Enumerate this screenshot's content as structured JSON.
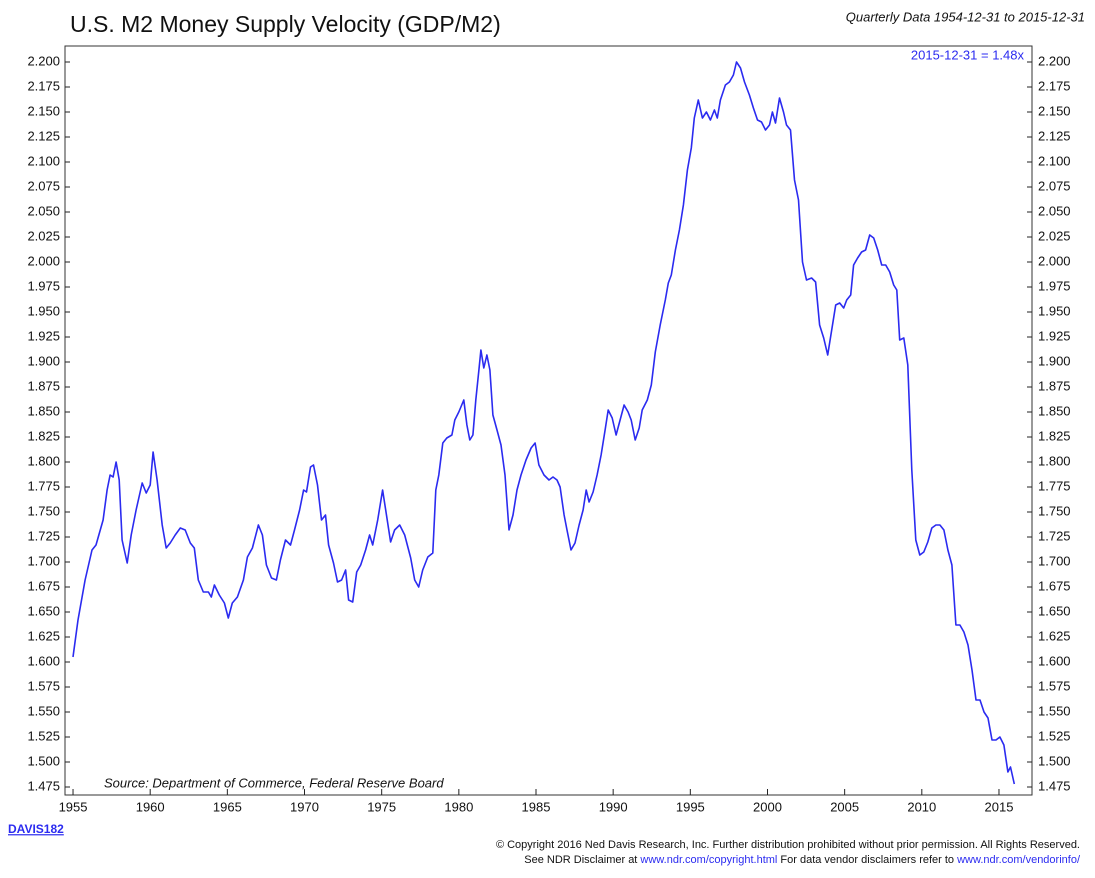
{
  "chart_data": {
    "type": "line",
    "title": "U.S. M2 Money Supply Velocity (GDP/M2)",
    "subtitle": "Quarterly Data 1954-12-31 to 2015-12-31",
    "annotation": "2015-12-31 = 1.48x",
    "source": "Source:   Department of Commerce, Federal Reserve Board",
    "chart_id": "DAVIS182",
    "copyright": [
      "© Copyright 2016 Ned Davis Research, Inc. Further distribution prohibited without prior permission. All Rights Reserved.",
      "See NDR Disclaimer at ",
      "www.ndr.com/copyright.html",
      "   For data vendor disclaimers refer to ",
      "www.ndr.com/vendorinfo/"
    ],
    "color": "#2b2bf0",
    "xlim": [
      1954.48,
      2017.14
    ],
    "xticks": [
      1955,
      1960,
      1965,
      1970,
      1975,
      1980,
      1985,
      1990,
      1995,
      2000,
      2005,
      2010,
      2015
    ],
    "ylim": [
      1.469,
      2.212
    ],
    "yticks": [
      {
        "value": 1.475,
        "label": "1.475"
      },
      {
        "value": 1.5,
        "label": "1.500"
      },
      {
        "value": 1.525,
        "label": "1.525"
      },
      {
        "value": 1.55,
        "label": "1.550"
      },
      {
        "value": 1.575,
        "label": "1.575"
      },
      {
        "value": 1.6,
        "label": "1.600"
      },
      {
        "value": 1.625,
        "label": "1.625"
      },
      {
        "value": 1.65,
        "label": "1.650"
      },
      {
        "value": 1.675,
        "label": "1.675"
      },
      {
        "value": 1.7,
        "label": "1.700"
      },
      {
        "value": 1.725,
        "label": "1.725"
      },
      {
        "value": 1.75,
        "label": "1.750"
      },
      {
        "value": 1.775,
        "label": "1.775"
      },
      {
        "value": 1.8,
        "label": "1.800"
      },
      {
        "value": 1.825,
        "label": "1.825"
      },
      {
        "value": 1.85,
        "label": "1.850"
      },
      {
        "value": 1.875,
        "label": "1.875"
      },
      {
        "value": 1.9,
        "label": "1.900"
      },
      {
        "value": 1.925,
        "label": "1.925"
      },
      {
        "value": 1.95,
        "label": "1.950"
      },
      {
        "value": 1.975,
        "label": "1.975"
      },
      {
        "value": 2.0,
        "label": "2.000"
      },
      {
        "value": 2.025,
        "label": "2.025"
      },
      {
        "value": 2.05,
        "label": "2.050"
      },
      {
        "value": 2.075,
        "label": "2.075"
      },
      {
        "value": 2.1,
        "label": "2.100"
      },
      {
        "value": 2.125,
        "label": "2.125"
      },
      {
        "value": 2.15,
        "label": "2.150"
      },
      {
        "value": 2.175,
        "label": "2.175"
      },
      {
        "value": 2.2,
        "label": "2.200"
      }
    ],
    "x": [
      1955.0,
      1955.32,
      1955.78,
      1956.23,
      1956.49,
      1956.95,
      1957.21,
      1957.4,
      1957.6,
      1957.79,
      1957.99,
      1958.18,
      1958.51,
      1958.77,
      1959.09,
      1959.48,
      1959.74,
      1960.0,
      1960.19,
      1960.45,
      1960.78,
      1961.04,
      1961.3,
      1961.62,
      1961.95,
      1962.27,
      1962.6,
      1962.86,
      1963.12,
      1963.44,
      1963.77,
      1963.96,
      1964.16,
      1964.48,
      1964.81,
      1965.06,
      1965.32,
      1965.65,
      1966.04,
      1966.3,
      1966.62,
      1967.01,
      1967.27,
      1967.53,
      1967.86,
      1968.18,
      1968.44,
      1968.77,
      1969.09,
      1969.35,
      1969.68,
      1969.94,
      1970.13,
      1970.39,
      1970.58,
      1970.84,
      1971.1,
      1971.36,
      1971.56,
      1971.88,
      1972.14,
      1972.4,
      1972.66,
      1972.86,
      1973.12,
      1973.38,
      1973.64,
      1973.96,
      1974.22,
      1974.42,
      1974.74,
      1975.06,
      1975.26,
      1975.58,
      1975.84,
      1976.17,
      1976.49,
      1976.88,
      1977.14,
      1977.4,
      1977.66,
      1977.99,
      1978.31,
      1978.51,
      1978.7,
      1978.96,
      1979.22,
      1979.55,
      1979.74,
      1980.0,
      1980.32,
      1980.52,
      1980.71,
      1980.91,
      1981.1,
      1981.3,
      1981.43,
      1981.62,
      1981.82,
      1982.01,
      1982.21,
      1982.47,
      1982.73,
      1982.99,
      1983.25,
      1983.51,
      1983.77,
      1984.03,
      1984.35,
      1984.68,
      1984.94,
      1985.19,
      1985.52,
      1985.84,
      1986.1,
      1986.36,
      1986.56,
      1986.82,
      1987.01,
      1987.27,
      1987.53,
      1987.79,
      1988.05,
      1988.25,
      1988.44,
      1988.7,
      1988.96,
      1989.22,
      1989.48,
      1989.68,
      1989.94,
      1990.19,
      1990.45,
      1990.71,
      1990.97,
      1991.17,
      1991.43,
      1991.69,
      1991.88,
      1992.21,
      1992.47,
      1992.73,
      1993.05,
      1993.38,
      1993.57,
      1993.77,
      1994.03,
      1994.29,
      1994.55,
      1994.81,
      1995.06,
      1995.26,
      1995.52,
      1995.78,
      1996.04,
      1996.3,
      1996.56,
      1996.75,
      1996.95,
      1997.27,
      1997.53,
      1997.79,
      1997.99,
      1998.25,
      1998.51,
      1998.83,
      1999.09,
      1999.35,
      1999.61,
      1999.87,
      2000.13,
      2000.32,
      2000.52,
      2000.78,
      2001.04,
      2001.23,
      2001.49,
      2001.75,
      2002.01,
      2002.27,
      2002.53,
      2002.86,
      2003.12,
      2003.38,
      2003.64,
      2003.9,
      2004.16,
      2004.42,
      2004.68,
      2004.94,
      2005.13,
      2005.39,
      2005.58,
      2005.84,
      2006.1,
      2006.36,
      2006.62,
      2006.88,
      2007.14,
      2007.4,
      2007.66,
      2007.92,
      2008.18,
      2008.38,
      2008.57,
      2008.83,
      2009.09,
      2009.35,
      2009.61,
      2009.87,
      2010.13,
      2010.39,
      2010.65,
      2010.91,
      2011.17,
      2011.43,
      2011.69,
      2011.95,
      2012.21,
      2012.47,
      2012.73,
      2012.99,
      2013.25,
      2013.51,
      2013.77,
      2014.03,
      2014.29,
      2014.55,
      2014.81,
      2015.06,
      2015.32,
      2015.58,
      2015.75,
      2015.99
    ],
    "values": [
      1.605,
      1.642,
      1.682,
      1.712,
      1.717,
      1.742,
      1.772,
      1.787,
      1.785,
      1.8,
      1.782,
      1.722,
      1.699,
      1.727,
      1.752,
      1.779,
      1.769,
      1.777,
      1.81,
      1.782,
      1.737,
      1.714,
      1.719,
      1.727,
      1.734,
      1.732,
      1.719,
      1.714,
      1.682,
      1.67,
      1.67,
      1.665,
      1.677,
      1.667,
      1.659,
      1.644,
      1.659,
      1.665,
      1.682,
      1.705,
      1.714,
      1.737,
      1.727,
      1.697,
      1.684,
      1.682,
      1.702,
      1.722,
      1.717,
      1.732,
      1.752,
      1.772,
      1.77,
      1.795,
      1.797,
      1.777,
      1.742,
      1.747,
      1.717,
      1.699,
      1.68,
      1.682,
      1.692,
      1.662,
      1.66,
      1.69,
      1.697,
      1.712,
      1.727,
      1.717,
      1.742,
      1.772,
      1.752,
      1.72,
      1.732,
      1.737,
      1.727,
      1.704,
      1.682,
      1.675,
      1.692,
      1.705,
      1.709,
      1.772,
      1.787,
      1.819,
      1.824,
      1.827,
      1.842,
      1.85,
      1.862,
      1.837,
      1.822,
      1.827,
      1.862,
      1.892,
      1.912,
      1.894,
      1.907,
      1.892,
      1.847,
      1.832,
      1.817,
      1.787,
      1.732,
      1.747,
      1.772,
      1.787,
      1.802,
      1.814,
      1.819,
      1.797,
      1.787,
      1.782,
      1.785,
      1.782,
      1.775,
      1.747,
      1.732,
      1.712,
      1.719,
      1.737,
      1.752,
      1.772,
      1.76,
      1.77,
      1.787,
      1.807,
      1.832,
      1.852,
      1.844,
      1.827,
      1.842,
      1.857,
      1.85,
      1.842,
      1.822,
      1.834,
      1.852,
      1.862,
      1.877,
      1.91,
      1.937,
      1.962,
      1.979,
      1.987,
      2.012,
      2.032,
      2.057,
      2.092,
      2.114,
      2.144,
      2.162,
      2.144,
      2.15,
      2.142,
      2.152,
      2.144,
      2.162,
      2.177,
      2.18,
      2.187,
      2.2,
      2.194,
      2.18,
      2.167,
      2.154,
      2.142,
      2.14,
      2.132,
      2.137,
      2.15,
      2.139,
      2.164,
      2.15,
      2.137,
      2.132,
      2.082,
      2.062,
      2.0,
      1.982,
      1.984,
      1.98,
      1.937,
      1.924,
      1.907,
      1.932,
      1.957,
      1.959,
      1.954,
      1.962,
      1.967,
      1.997,
      2.004,
      2.01,
      2.012,
      2.027,
      2.024,
      2.012,
      1.997,
      1.997,
      1.99,
      1.977,
      1.972,
      1.922,
      1.924,
      1.897,
      1.792,
      1.722,
      1.707,
      1.71,
      1.72,
      1.734,
      1.737,
      1.737,
      1.732,
      1.712,
      1.697,
      1.637,
      1.637,
      1.63,
      1.617,
      1.592,
      1.562,
      1.562,
      1.55,
      1.544,
      1.522,
      1.522,
      1.525,
      1.517,
      1.49,
      1.495,
      1.478
    ]
  }
}
